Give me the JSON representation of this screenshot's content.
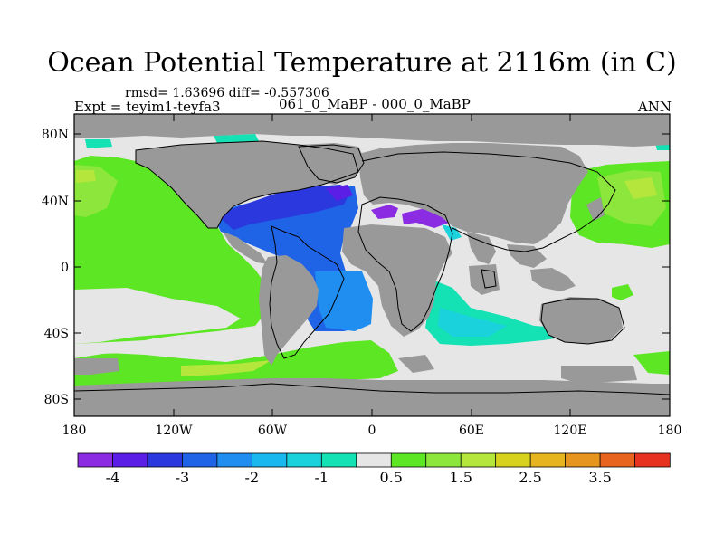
{
  "title": "Ocean Potential Temperature at 2116m (in C)",
  "stats": "rmsd= 1.63696 diff= -0.557306",
  "experiment": "Expt = teyim1-teyfa3",
  "case": "061_0_MaBP - 000_0_MaBP",
  "season": "ANN",
  "map": {
    "y_ticks": [
      "80N",
      "40N",
      "0",
      "40S",
      "80S"
    ],
    "x_ticks": [
      "180",
      "120W",
      "60W",
      "0",
      "60E",
      "120E",
      "180"
    ]
  },
  "colorbar": {
    "labels": [
      "-4",
      "-3",
      "-2",
      "-1",
      "0.5",
      "1.5",
      "2.5",
      "3.5"
    ],
    "colors": [
      "#8b2be2",
      "#5a1ee6",
      "#2a38de",
      "#1f63e6",
      "#1f8ef0",
      "#19b9f0",
      "#19d2dc",
      "#14e2b4",
      "#e6e6e6",
      "#5ce623",
      "#8ce63c",
      "#b4e63c",
      "#d7d21e",
      "#e6b41e",
      "#e6961e",
      "#e6641e",
      "#e6321e"
    ]
  },
  "colors": {
    "land": "#999999",
    "coast": "#000000"
  }
}
